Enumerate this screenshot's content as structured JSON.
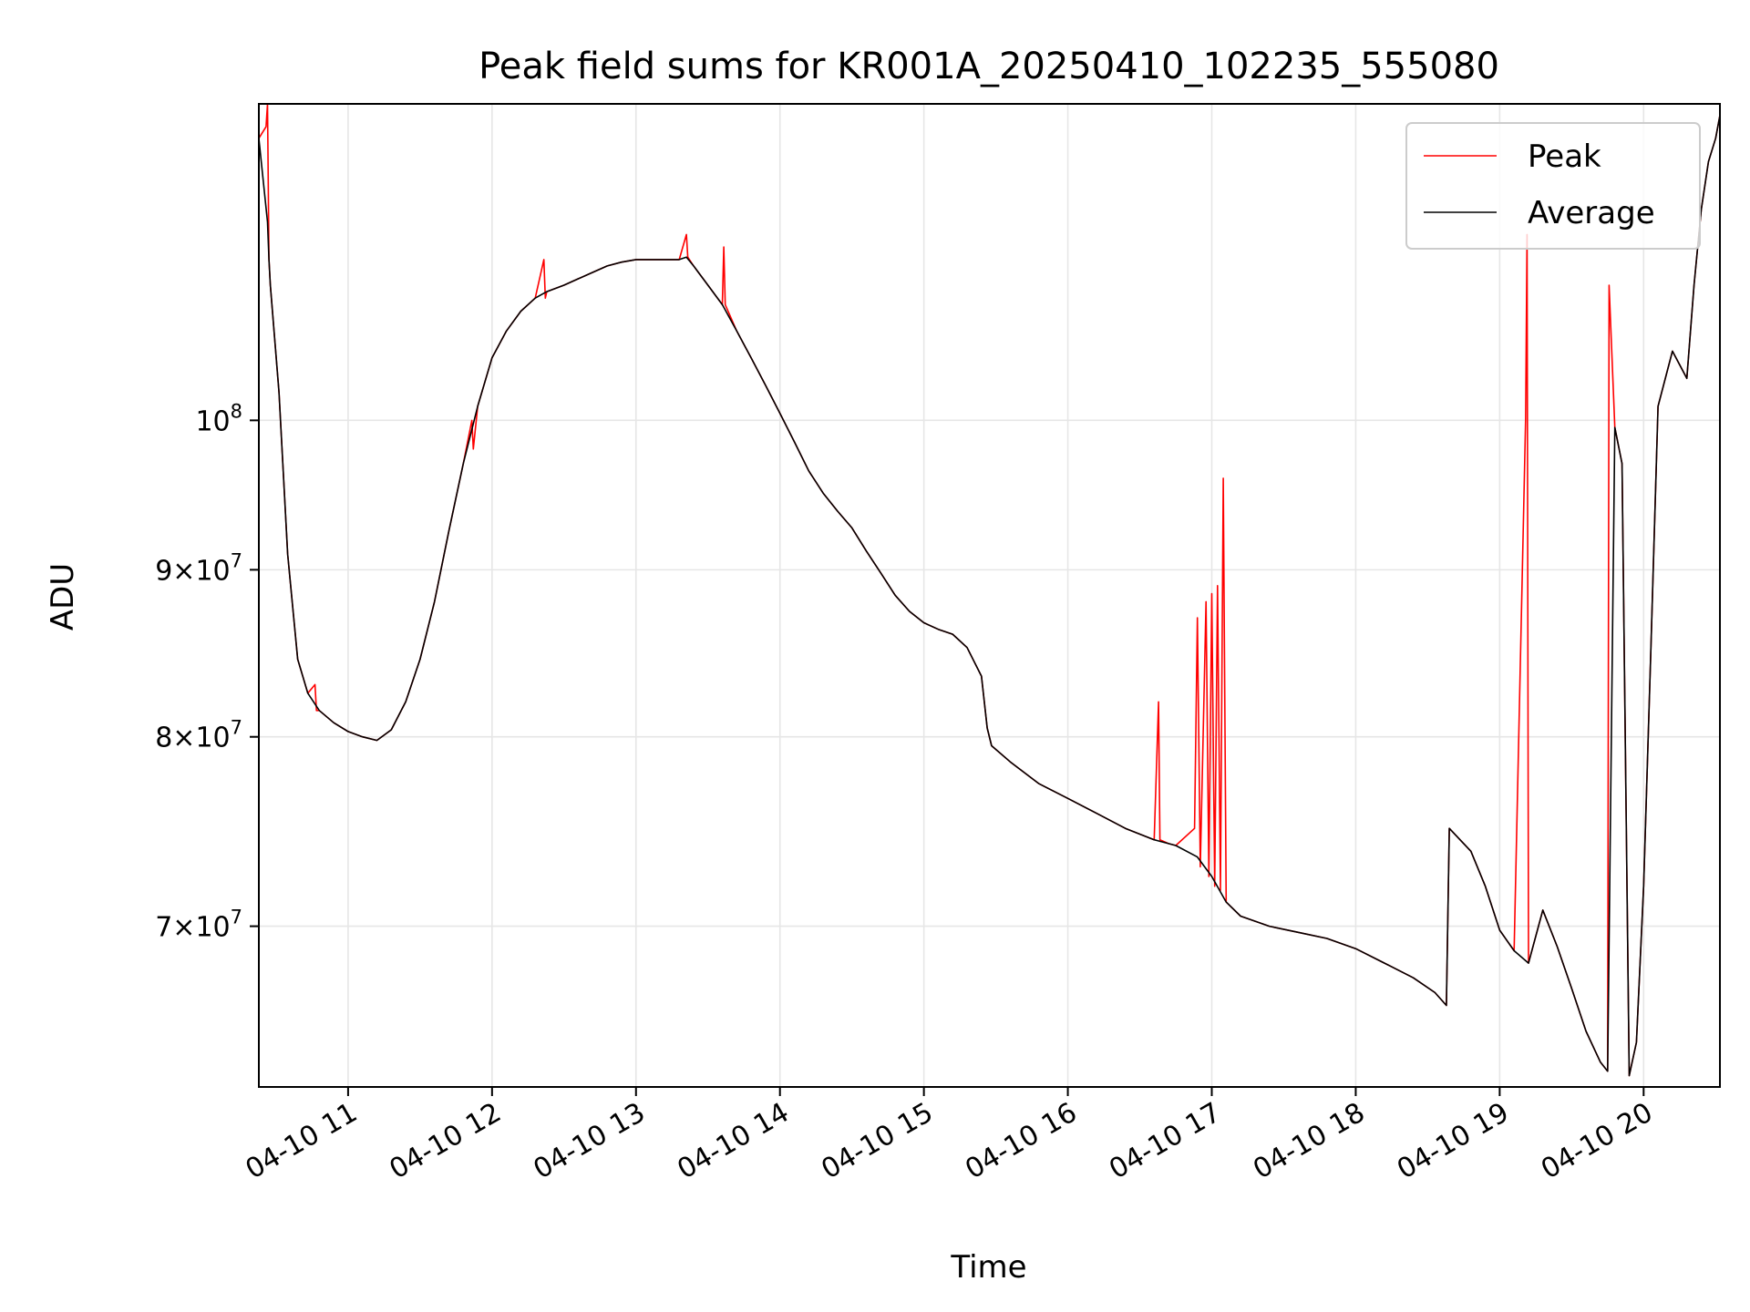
{
  "chart_data": {
    "type": "line",
    "title": "Peak field sums for KR001A_20250410_102235_555080",
    "xlabel": "Time",
    "ylabel": "ADU",
    "x_unit": "hours on 2025-04-10",
    "xlim": [
      10.38,
      20.53
    ],
    "ylim": [
      62500000.0,
      125000000.0
    ],
    "yscale": "log",
    "grid": true,
    "legend": "top-right",
    "x_ticks": [
      {
        "value": 11,
        "label": "04-10 11"
      },
      {
        "value": 12,
        "label": "04-10 12"
      },
      {
        "value": 13,
        "label": "04-10 13"
      },
      {
        "value": 14,
        "label": "04-10 14"
      },
      {
        "value": 15,
        "label": "04-10 15"
      },
      {
        "value": 16,
        "label": "04-10 16"
      },
      {
        "value": 17,
        "label": "04-10 17"
      },
      {
        "value": 18,
        "label": "04-10 18"
      },
      {
        "value": 19,
        "label": "04-10 19"
      },
      {
        "value": 20,
        "label": "04-10 20"
      }
    ],
    "y_ticks": [
      {
        "value": 70000000,
        "base": "7×10",
        "exp": "7"
      },
      {
        "value": 80000000,
        "base": "8×10",
        "exp": "7"
      },
      {
        "value": 90000000,
        "base": "9×10",
        "exp": "7"
      },
      {
        "value": 100000000,
        "base": "10",
        "exp": "8"
      }
    ],
    "series": [
      {
        "name": "Average",
        "color": "#000000",
        "x": [
          10.38,
          10.44,
          10.45,
          10.46,
          10.52,
          10.58,
          10.65,
          10.72,
          10.8,
          10.9,
          11.0,
          11.1,
          11.2,
          11.3,
          11.4,
          11.5,
          11.6,
          11.7,
          11.8,
          11.9,
          12.0,
          12.1,
          12.2,
          12.3,
          12.38,
          12.5,
          12.6,
          12.7,
          12.8,
          12.9,
          13.0,
          13.1,
          13.2,
          13.3,
          13.35,
          13.4,
          13.5,
          13.6,
          13.7,
          13.8,
          13.9,
          14.0,
          14.1,
          14.2,
          14.3,
          14.4,
          14.5,
          14.6,
          14.7,
          14.8,
          14.9,
          15.0,
          15.1,
          15.2,
          15.3,
          15.4,
          15.44,
          15.47,
          15.6,
          15.8,
          16.0,
          16.2,
          16.4,
          16.6,
          16.7,
          16.75,
          16.9,
          17.0,
          17.1,
          17.2,
          17.4,
          17.6,
          17.8,
          18.0,
          18.2,
          18.4,
          18.55,
          18.63,
          18.65,
          18.8,
          18.9,
          19.0,
          19.1,
          19.2,
          19.3,
          19.4,
          19.5,
          19.6,
          19.7,
          19.75,
          19.8,
          19.85,
          19.9,
          19.95,
          20.0,
          20.05,
          20.1,
          20.2,
          20.3,
          20.35,
          20.4,
          20.45,
          20.5,
          20.53
        ],
        "y": [
          122000000.0,
          115000000.0,
          112000000.0,
          110000000.0,
          102000000.0,
          91000000.0,
          84500000.0,
          82500000.0,
          81500000.0,
          80800000.0,
          80300000.0,
          80000000.0,
          79800000.0,
          80400000.0,
          82000000.0,
          84500000.0,
          88000000.0,
          92500000.0,
          97000000.0,
          101000000.0,
          104500000.0,
          106500000.0,
          108000000.0,
          109000000.0,
          109500000.0,
          110000000.0,
          110500000.0,
          111000000.0,
          111500000.0,
          111800000.0,
          112000000.0,
          112000000.0,
          112000000.0,
          112000000.0,
          112200000.0,
          111500000.0,
          110000000.0,
          108500000.0,
          106500000.0,
          104500000.0,
          102500000.0,
          100500000.0,
          98500000.0,
          96500000.0,
          95000000.0,
          93800000.0,
          92700000.0,
          91200000.0,
          89800000.0,
          88400000.0,
          87400000.0,
          86700000.0,
          86300000.0,
          86000000.0,
          85200000.0,
          83500000.0,
          80500000.0,
          79500000.0,
          78600000.0,
          77400000.0,
          76600000.0,
          75800000.0,
          75000000.0,
          74400000.0,
          74200000.0,
          74100000.0,
          73500000.0,
          72500000.0,
          71200000.0,
          70500000.0,
          70000000.0,
          69700000.0,
          69400000.0,
          68900000.0,
          68200000.0,
          67500000.0,
          66800000.0,
          66200000.0,
          75000000.0,
          73800000.0,
          72000000.0,
          69800000.0,
          68800000.0,
          68200000.0,
          70800000.0,
          69000000.0,
          67000000.0,
          65000000.0,
          63600000.0,
          63200000.0,
          99500000.0,
          97000000.0,
          63000000.0,
          64500000.0,
          72000000.0,
          85000000.0,
          101000000.0,
          105000000.0,
          103000000.0,
          110000000.0,
          116000000.0,
          120000000.0,
          122000000.0,
          124000000.0
        ]
      },
      {
        "name": "Peak",
        "color": "#ff0000",
        "x": [
          10.38,
          10.43,
          10.44,
          10.45,
          10.46,
          10.52,
          10.58,
          10.65,
          10.72,
          10.77,
          10.78,
          10.8,
          10.9,
          11.0,
          11.1,
          11.2,
          11.3,
          11.4,
          11.5,
          11.6,
          11.7,
          11.8,
          11.86,
          11.87,
          11.9,
          12.0,
          12.1,
          12.2,
          12.3,
          12.36,
          12.37,
          12.38,
          12.5,
          12.6,
          12.7,
          12.8,
          12.9,
          13.0,
          13.1,
          13.2,
          13.3,
          13.35,
          13.36,
          13.4,
          13.5,
          13.6,
          13.61,
          13.62,
          13.7,
          13.8,
          13.9,
          14.0,
          14.1,
          14.2,
          14.3,
          14.4,
          14.5,
          14.6,
          14.7,
          14.8,
          14.9,
          15.0,
          15.1,
          15.2,
          15.3,
          15.4,
          15.44,
          15.47,
          15.6,
          15.8,
          16.0,
          16.2,
          16.4,
          16.6,
          16.63,
          16.64,
          16.7,
          16.75,
          16.88,
          16.9,
          16.92,
          16.96,
          16.98,
          17.0,
          17.02,
          17.04,
          17.06,
          17.08,
          17.1,
          17.2,
          17.4,
          17.6,
          17.8,
          18.0,
          18.2,
          18.4,
          18.55,
          18.63,
          18.65,
          18.8,
          18.9,
          19.0,
          19.1,
          19.18,
          19.19,
          19.2,
          19.3,
          19.4,
          19.5,
          19.6,
          19.7,
          19.75,
          19.76,
          19.8,
          19.85,
          19.9,
          19.95,
          20.0,
          20.05,
          20.1,
          20.2,
          20.3,
          20.35,
          20.4,
          20.45,
          20.5,
          20.53
        ],
        "y": [
          122000000.0,
          123000000.0,
          125000000.0,
          112000000.0,
          110000000.0,
          102000000.0,
          91000000.0,
          84500000.0,
          82500000.0,
          83000000.0,
          81500000.0,
          81500000.0,
          80800000.0,
          80300000.0,
          80000000.0,
          79800000.0,
          80400000.0,
          82000000.0,
          84500000.0,
          88000000.0,
          92500000.0,
          97000000.0,
          100000000.0,
          98000000.0,
          101000000.0,
          104500000.0,
          106500000.0,
          108000000.0,
          109000000.0,
          112000000.0,
          109000000.0,
          109500000.0,
          110000000.0,
          110500000.0,
          111000000.0,
          111500000.0,
          111800000.0,
          112000000.0,
          112000000.0,
          112000000.0,
          112000000.0,
          114000000.0,
          112200000.0,
          111500000.0,
          110000000.0,
          108500000.0,
          113000000.0,
          108500000.0,
          106500000.0,
          104500000.0,
          102500000.0,
          100500000.0,
          98500000.0,
          96500000.0,
          95000000.0,
          93800000.0,
          92700000.0,
          91200000.0,
          89800000.0,
          88400000.0,
          87400000.0,
          86700000.0,
          86300000.0,
          86000000.0,
          85200000.0,
          83500000.0,
          80500000.0,
          79500000.0,
          78600000.0,
          77400000.0,
          76600000.0,
          75800000.0,
          75000000.0,
          74400000.0,
          82000000.0,
          74400000.0,
          74200000.0,
          74100000.0,
          75000000.0,
          87000000.0,
          73000000.0,
          88000000.0,
          72500000.0,
          88500000.0,
          72000000.0,
          89000000.0,
          71800000.0,
          96000000.0,
          71200000.0,
          70500000.0,
          70000000.0,
          69700000.0,
          69400000.0,
          68900000.0,
          68200000.0,
          67500000.0,
          66800000.0,
          66200000.0,
          75000000.0,
          73800000.0,
          72000000.0,
          69800000.0,
          68800000.0,
          100000000.0,
          114000000.0,
          68200000.0,
          70800000.0,
          69000000.0,
          67000000.0,
          65000000.0,
          63600000.0,
          63200000.0,
          110000000.0,
          99500000.0,
          97000000.0,
          63000000.0,
          64500000.0,
          72000000.0,
          85000000.0,
          101000000.0,
          105000000.0,
          103000000.0,
          110000000.0,
          116000000.0,
          120000000.0,
          122000000.0,
          124000000.0
        ]
      }
    ]
  }
}
